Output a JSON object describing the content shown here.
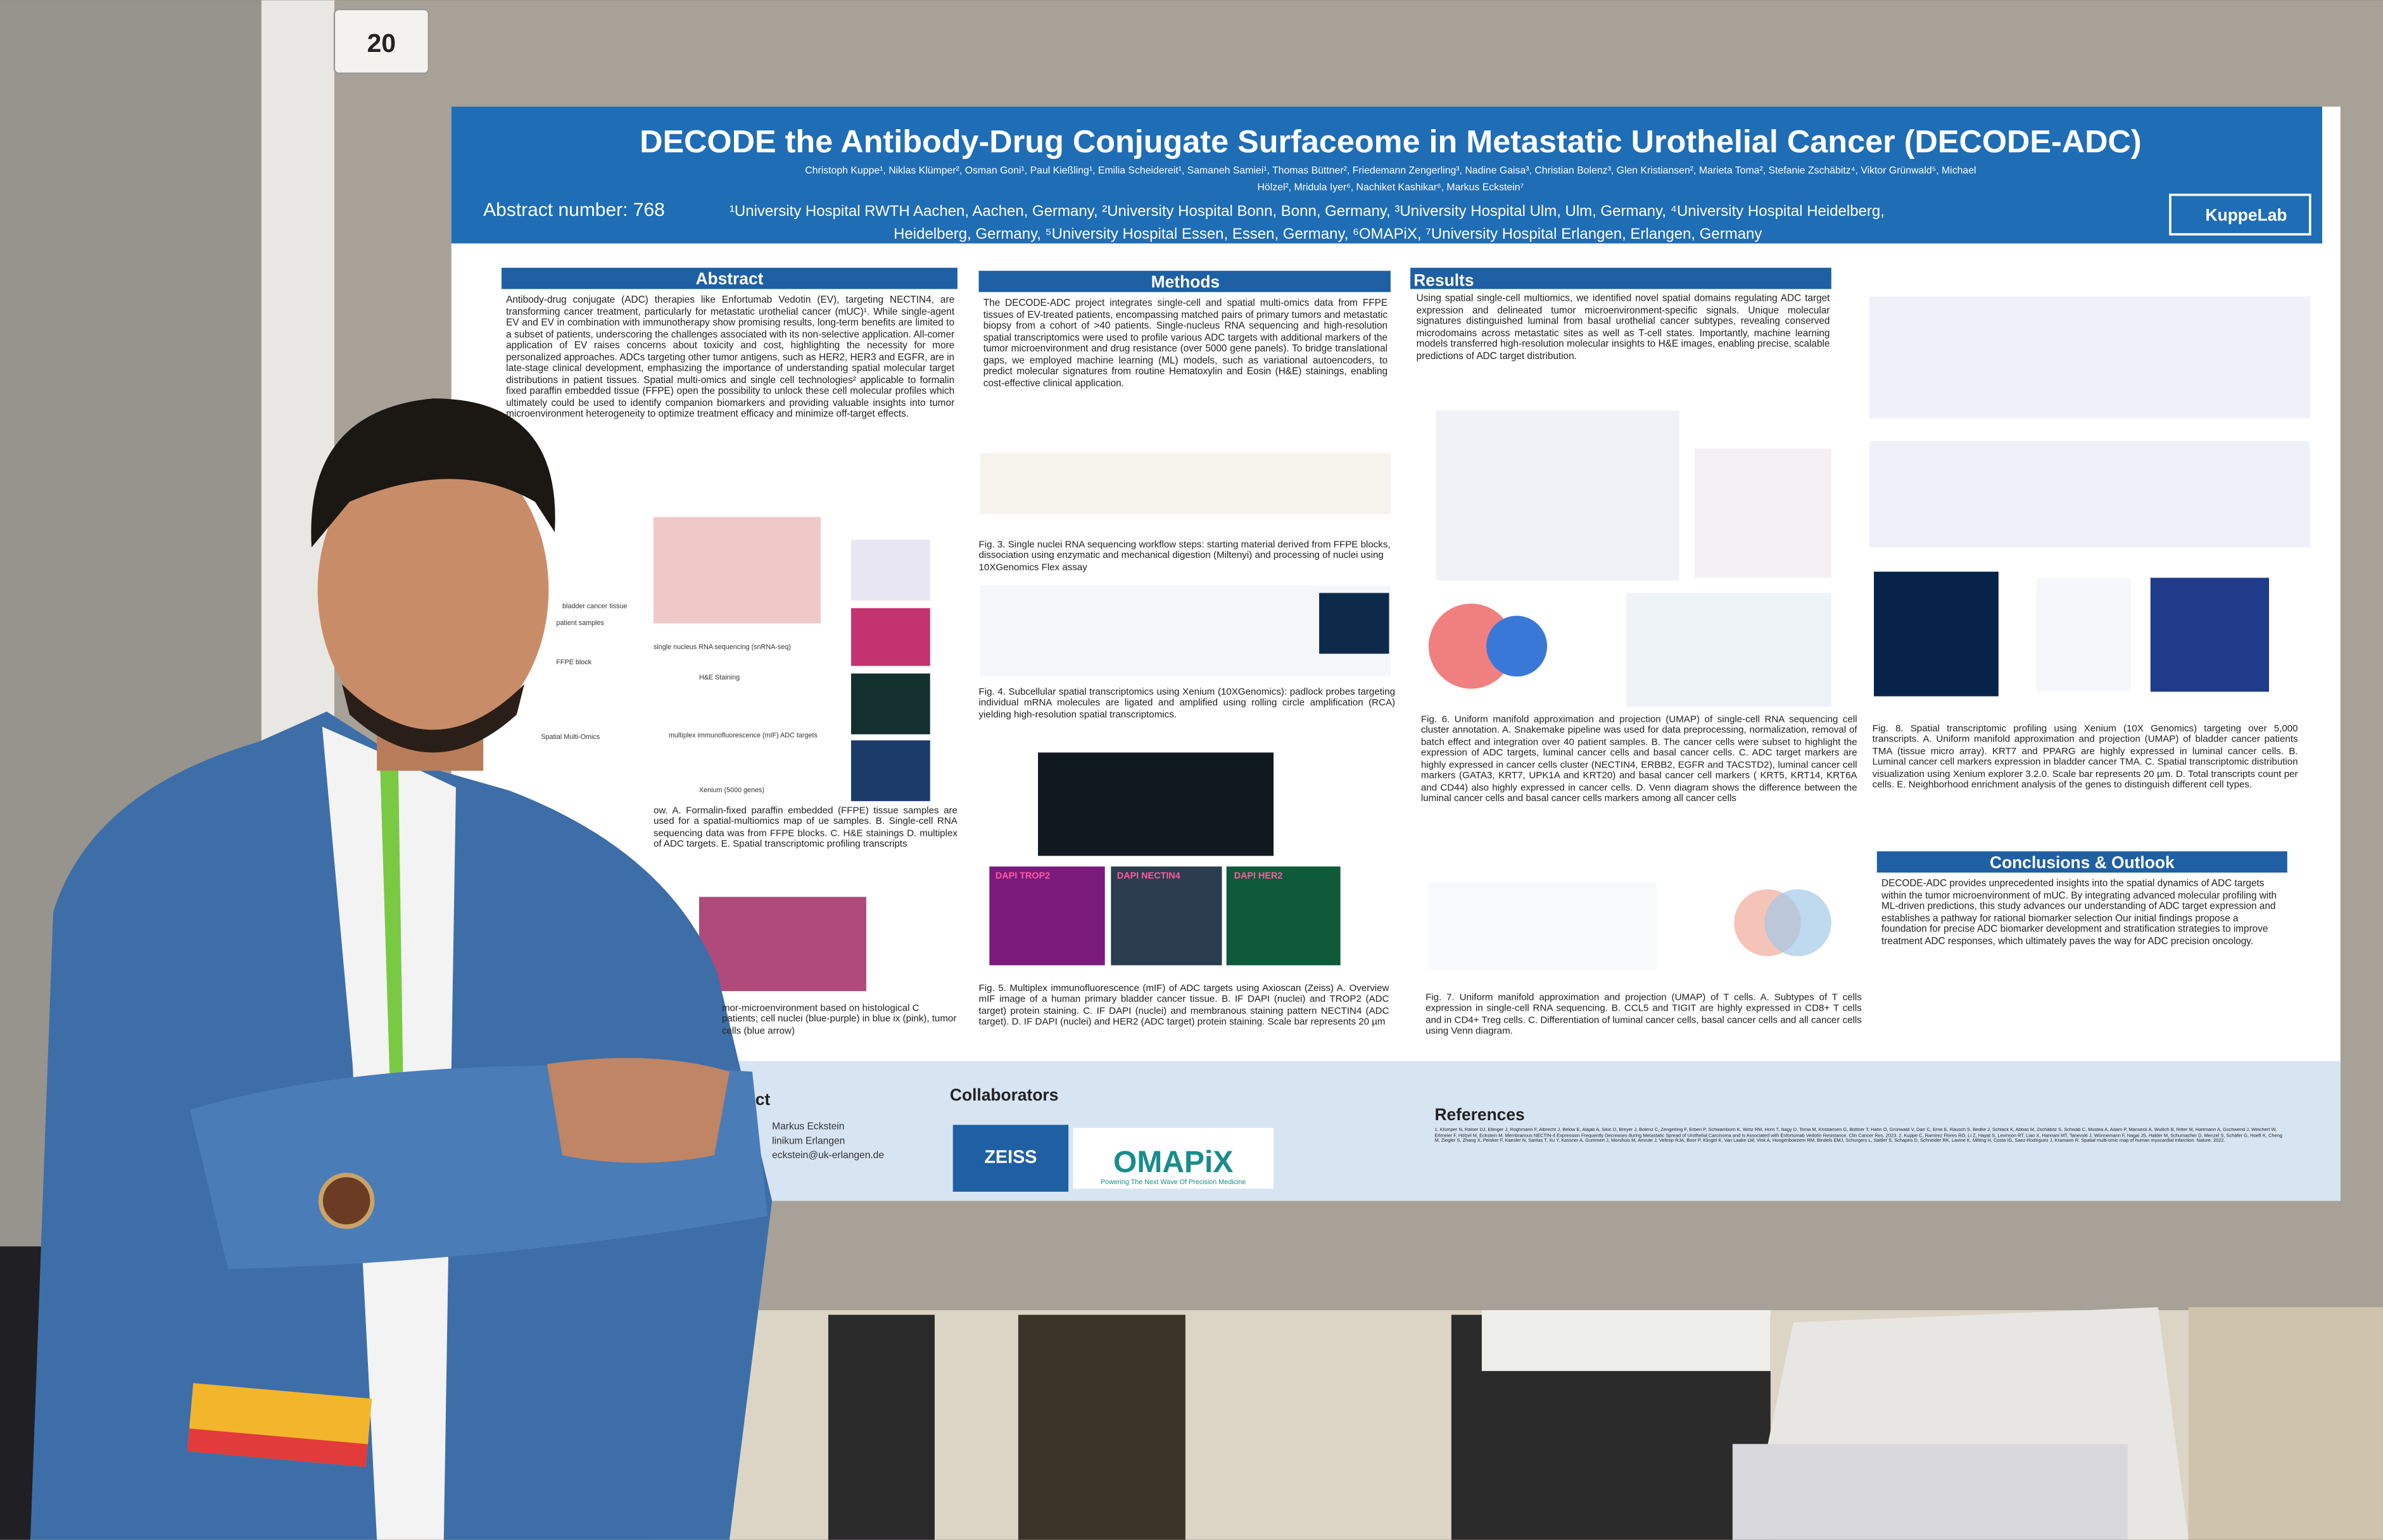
{
  "board_number": "20",
  "poster": {
    "title": "DECODE the Antibody-Drug Conjugate Surfaceome in Metastatic Urothelial Cancer (DECODE-ADC)",
    "authors": [
      "Christoph Kuppe¹, Niklas Klümper², Osman Goni¹, Paul Kießling¹, Emilia Scheidereit¹, Samaneh Samiei¹, Thomas Büttner², Friedemann Zengerling³, Nadine Gaisa³, Christian Bolenz³, Glen Kristiansen², Marieta Toma², Stefanie Zschäbitz⁴, Viktor Grünwald⁵, Michael",
      "Hölzel², Mridula Iyer⁶, Nachiket Kashikar⁶, Markus Eckstein⁷"
    ],
    "abstract_number": "Abstract number: 768",
    "affiliations": [
      "¹University Hospital RWTH Aachen, Aachen, Germany, ²University Hospital Bonn, Bonn, Germany, ³University Hospital Ulm, Ulm, Germany, ⁴University Hospital Heidelberg,",
      "Heidelberg, Germany, ⁵University Hospital Essen, Essen, Germany, ⁶OMAPiX, ⁷University Hospital Erlangen, Erlangen, Germany"
    ],
    "logo": "KuppeLab",
    "abstract": {
      "heading": "Abstract",
      "text": "Antibody-drug conjugate (ADC) therapies like Enfortumab Vedotin (EV), targeting NECTIN4, are transforming cancer treatment, particularly for metastatic urothelial cancer (mUC)¹. While single-agent EV and EV in combination with immunotherapy show promising results, long-term benefits are limited to a subset of patients, underscoring the challenges associated with its non-selective application. All-comer application of EV raises concerns about toxicity and cost, highlighting the necessity for more personalized approaches. ADCs targeting other tumor antigens, such as HER2, HER3 and EGFR, are in late-stage clinical development, emphasizing the importance of understanding spatial molecular target distributions in patient tissues. Spatial multi-omics and single cell technologies² applicable to formalin fixed paraffin embedded tissue (FFPE) open the possibility to unlock these cell molecular profiles which ultimately could be used to identify companion biomarkers and providing valuable insights into tumor microenvironment heterogeneity to optimize treatment efficacy and minimize off-target effects."
    },
    "methods": {
      "heading": "Methods",
      "text": "The DECODE-ADC project integrates single-cell and spatial multi-omics data from FFPE tissues of EV-treated patients, encompassing matched pairs of primary tumors and metastatic biopsy from a cohort of >40 patients. Single-nucleus RNA sequencing and high-resolution spatial transcriptomics were used to profile various ADC targets with additional markers of the tumor microenvironment and drug resistance (over 5000 gene panels). To bridge translational gaps, we employed machine learning (ML) models, such as variational autoencoders, to predict molecular signatures from routine Hematoxylin and Eosin (H&E) stainings, enabling cost-effective clinical application."
    },
    "results": {
      "heading": "Results",
      "text": "Using spatial single-cell multiomics, we identified novel spatial domains regulating ADC target expression and delineated tumor microenvironment-specific signals. Unique molecular signatures distinguished luminal from basal urothelial cancer subtypes, revealing conserved microdomains across metastatic sites as well as T-cell states. Importantly, machine learning models transferred high-resolution molecular insights to H&E images, enabling precise, scalable predictions of ADC target distribution."
    },
    "figure1_labels": [
      "bladder cancer tissue",
      "patient samples",
      "FFPE block",
      "single nucleus RNA sequencing (snRNA-seq)",
      "H&E Staining",
      "Spatial Multi-Omics",
      "multiplex immunofluorescence (mIF) ADC targets",
      "Xenium (5000 genes)"
    ],
    "figure1_caption": "ow. A. Formalin-fixed paraffin embedded (FFPE) tissue samples are used for a spatial-multiomics map of ue samples. B. Single-cell RNA sequencing data was from FFPE blocks. C. H&E stainings D. multiplex of ADC targets. E. Spatial transcriptomic profiling transcripts",
    "figure2_caption": "mor-microenvironment based on histological C patients; cell nuclei (blue-purple) in blue ix (pink), tumor cells (blue arrow)",
    "figure3_caption": "Fig. 3. Single nuclei RNA sequencing workflow steps: starting material derived from FFPE blocks, dissociation using enzymatic and mechanical digestion (Miltenyi) and processing of nuclei using 10XGenomics Flex assay",
    "figure4_caption": "Fig. 4. Subcellular spatial transcriptomics using Xenium (10XGenomics): padlock probes targeting individual mRNA molecules are ligated and amplified using rolling circle amplification (RCA) yielding high-resolution spatial transcriptomics.",
    "figure5_caption": "Fig. 5. Multiplex immunofluorescence (mIF) of ADC targets using Axioscan (Zeiss) A. Overview mIF image of a human primary bladder cancer tissue. B. IF DAPI (nuclei) and TROP2 (ADC target) protein staining. C. IF DAPI (nuclei) and membranous staining pattern NECTIN4 (ADC target). D. IF DAPI (nuclei) and HER2 (ADC target) protein staining. Scale bar represents 20 µm",
    "figure5_labels": [
      "DAPI TROP2",
      "DAPI NECTIN4",
      "DAPI HER2"
    ],
    "figure6_caption": "Fig. 6. Uniform manifold approximation and projection (UMAP) of single-cell RNA sequencing cell cluster annotation. A. Snakemake pipeline was used for data preprocessing, normalization, removal of batch effect and integration over 40 patient samples. B. The cancer cells were subset to highlight the expression of ADC targets, luminal cancer cells and basal cancer cells. C. ADC target markers are highly expressed in cancer cells cluster (NECTIN4, ERBB2, EGFR and TACSTD2), luminal cancer cell markers (GATA3, KRT7, UPK1A and KRT20) and basal cancer cell markers ( KRT5, KRT14, KRT6A and CD44) also highly expressed in cancer cells. D. Venn diagram shows the difference between the luminal cancer cells and basal cancer cells markers among all cancer cells",
    "figure7_caption": "Fig. 7. Uniform manifold approximation and projection (UMAP) of T cells. A. Subtypes of T cells expression in single-cell RNA sequencing. B. CCL5 and TIGIT are highly expressed in CD8+ T cells and in CD4+ Treg cells. C. Differentiation of luminal cancer cells, basal cancer cells and all cancer cells using Venn diagram.",
    "figure8_caption": "Fig. 8. Spatial transcriptomic profiling using Xenium (10X Genomics) targeting over 5,000 transcripts. A. Uniform manifold approximation and projection (UMAP) of bladder cancer patients TMA (tissue micro array). KRT7 and PPARG are highly expressed in luminal cancer cells. B. Luminal cancer cell markers expression in bladder cancer TMA. C. Spatial transcriptomic distribution visualization using Xenium explorer 3.2.0. Scale bar represents 20 µm. D. Total transcripts count per cells. E. Neighborhood enrichment analysis of the genes to distinguish different cell types.",
    "conclusions": {
      "heading": "Conclusions & Outlook",
      "text": "DECODE-ADC provides unprecedented insights into the spatial dynamics of ADC targets within the tumor microenvironment of mUC. By integrating advanced molecular profiling with ML-driven predictions, this study advances our understanding of ADC target expression and establishes a pathway for rational biomarker selection Our initial findings propose a foundation for precise ADC biomarker development and stratification strategies to improve treatment ADC responses, which ultimately paves the way for ADC precision oncology."
    },
    "contact": {
      "heading": "ct",
      "lines": [
        "Markus Eckstein",
        "linikum Erlangen",
        "eckstein@uk-erlangen.de"
      ]
    },
    "collaborators": {
      "heading": "Collaborators",
      "zeiss": "ZEISS",
      "omapix": "OMAPiX",
      "tagline": "Powering The Next Wave Of Precision Medicine"
    },
    "references": {
      "heading": "References",
      "text": "1. Klümper N, Ralser DJ, Ellinger J, Roghmann F, Albrecht J, Below E, Alajati A, Sikic D, Breyer J, Bolenz C, Zengerling F, Erben P, Schwamborn K, Wirtz RM, Horn T, Nagy D, Toma M, Kristiansen G, Büttner T, Hahn O, Grünwald V, Darr C, Erne E, Rausch S, Bedke J, Schlack K, Abbas M, Zschäbitz S, Schwab C, Mustea A, Adam P, Manseck A, Wullich B, Ritter M, Hartmann A, Gschwend J, Weichert W, Erlmeier F, Hölzel M, Eckstein M. Membranous NECTIN-4 Expression Frequently Decreases during Metastatic Spread of Urothelial Carcinoma and Is Associated with Enfortumab Vedotin Resistance. Clin Cancer Res. 2023. 2. Kuppe C, Ramirez Flores RO, Li Z, Hayat S, Levinson RT, Liao X, Hannani MT, Tanevski J, Wünnemann F, Nagai JS, Halder M, Schumacher D, Menzel S, Schäfer G, Hoeft K, Cheng M, Ziegler S, Zhang X, Peisker F, Kaesler N, Saritas T, Xu Y, Kassner A, Gummert J, Morshuis M, Amrute J, Veltrop RJA, Boor P, Klingel K, Van Laake LW, Vink A, Hoogenboezem RM, Bindels EMJ, Schurgers L, Sattler S, Schapiro D, Schneider RK, Lavine K, Milting H, Costa IG, Saez-Rodriguez J, Kramann R. Spatial multi-omic map of human myocardial infarction. Nature. 2022."
    }
  }
}
